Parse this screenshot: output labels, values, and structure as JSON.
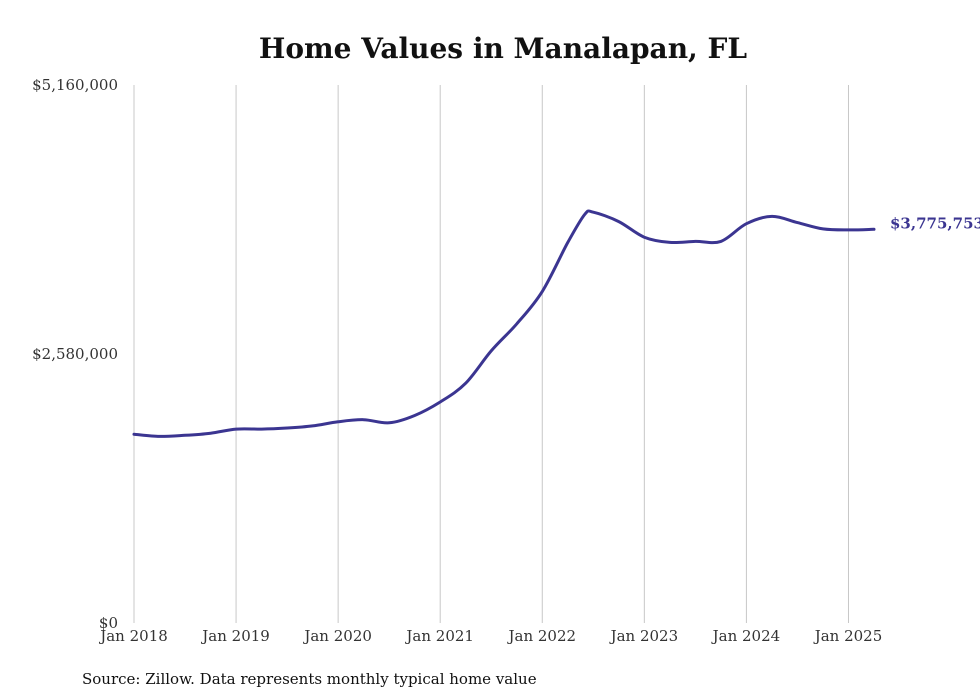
{
  "chart_data": {
    "type": "line",
    "title": "Home Values in Manalapan, FL",
    "xlabel": "",
    "ylabel": "",
    "ylim": [
      0,
      5160000
    ],
    "y_ticks": [
      "$0",
      "$2,580,000",
      "$5,160,000"
    ],
    "y_tick_values": [
      0,
      2580000,
      5160000
    ],
    "x_ticks": [
      "Jan 2018",
      "Jan 2019",
      "Jan 2020",
      "Jan 2021",
      "Jan 2022",
      "Jan 2023",
      "Jan 2024",
      "Jan 2025"
    ],
    "x_tick_dates": [
      "2018-01",
      "2019-01",
      "2020-01",
      "2021-01",
      "2022-01",
      "2023-01",
      "2024-01",
      "2025-01"
    ],
    "x_range": [
      "2018-01",
      "2025-04"
    ],
    "grid": "vertical",
    "line_color": "#3b3591",
    "end_label": "$3,775,753",
    "source": "Source: Zillow. Data represents monthly typical home value",
    "series": [
      {
        "x": [
          "2018-01",
          "2018-04",
          "2018-07",
          "2018-10",
          "2019-01",
          "2019-04",
          "2019-07",
          "2019-10",
          "2020-01",
          "2020-04",
          "2020-07",
          "2020-10",
          "2021-01",
          "2021-04",
          "2021-07",
          "2021-10",
          "2022-01",
          "2022-04",
          "2022-06",
          "2022-07",
          "2022-10",
          "2023-01",
          "2023-04",
          "2023-07",
          "2023-10",
          "2024-01",
          "2024-04",
          "2024-07",
          "2024-10",
          "2025-01",
          "2025-04"
        ],
        "values": [
          1810000,
          1790000,
          1800000,
          1820000,
          1860000,
          1860000,
          1870000,
          1890000,
          1930000,
          1950000,
          1920000,
          1990000,
          2120000,
          2300000,
          2610000,
          2870000,
          3180000,
          3650000,
          3920000,
          3940000,
          3850000,
          3700000,
          3650000,
          3660000,
          3660000,
          3830000,
          3900000,
          3840000,
          3780000,
          3770000,
          3775753
        ]
      }
    ]
  }
}
